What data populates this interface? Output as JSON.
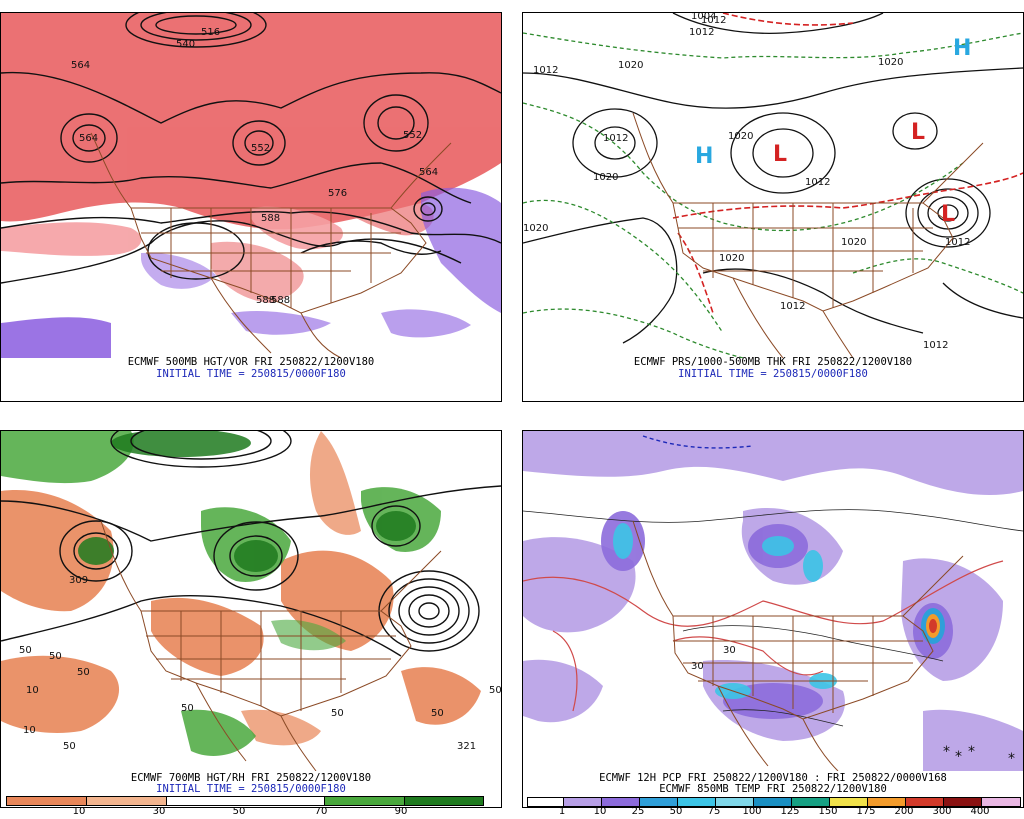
{
  "panels": [
    {
      "id": "p1",
      "caption1": "ECMWF 500MB HGT/VOR FRI 250822/1200V180",
      "caption2": "INITIAL TIME = 250815/0000F180",
      "contour_labels": [
        "516",
        "540",
        "564",
        "564",
        "552",
        "552",
        "564",
        "576",
        "588",
        "588",
        "588"
      ]
    },
    {
      "id": "p2",
      "caption1": "ECMWF PRS/1000-500MB THK FRI 250822/1200V180",
      "caption2": "INITIAL TIME = 250815/0000F180",
      "contour_labels": [
        "1004",
        "1012",
        "1020",
        "1012",
        "1020",
        "1012",
        "1020",
        "1012",
        "1020",
        "1020",
        "1020",
        "1012",
        "1012",
        "1012",
        "1020",
        "1012"
      ]
    },
    {
      "id": "p3",
      "caption1": "ECMWF 700MB HGT/RH FRI 250822/1200V180",
      "caption2": "INITIAL TIME = 250815/0000F180",
      "contour_labels": [
        "309",
        "50",
        "50",
        "50",
        "10",
        "50",
        "50",
        "50",
        "50",
        "321",
        "10",
        "50"
      ],
      "colorbar": {
        "labels": [
          "10",
          "30",
          "50",
          "70",
          "90"
        ],
        "colors": [
          "#e8875a",
          "#f3b58f",
          "#ffffff",
          "#4aa83d",
          "#1f7a1f"
        ]
      }
    },
    {
      "id": "p4",
      "caption1": "ECMWF 12H PCP FRI 250822/1200V180 : FRI 250822/0000V168",
      "caption2": "ECMWF 850MB TEMP FRI 250822/1200V180",
      "contour_labels": [
        "30",
        "30"
      ],
      "colorbar": {
        "labels": [
          "1",
          "10",
          "25",
          "50",
          "75",
          "100",
          "125",
          "150",
          "175",
          "200",
          "300",
          "400"
        ],
        "colors": [
          "#ffffff",
          "#b79fe6",
          "#8c6bdb",
          "#2f9fd9",
          "#3cc4e6",
          "#7fd6e8",
          "#1a8fc2",
          "#16a083",
          "#f0e14a",
          "#f39b2b",
          "#d23a2a",
          "#8a1212",
          "#e9b7e3"
        ]
      }
    }
  ]
}
